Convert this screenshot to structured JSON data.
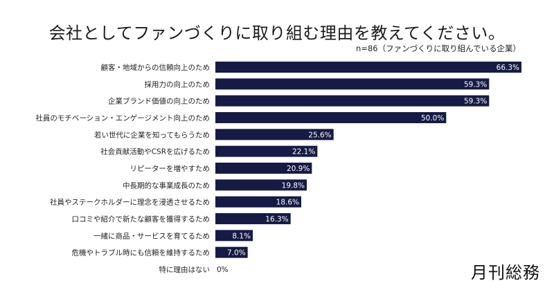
{
  "chart_data": {
    "type": "bar",
    "orientation": "horizontal",
    "title": "会社としてファンづくりに取り組む理由を教えてください。",
    "subtitle": "n=86（ファンづくりに取り組んでいる企業）",
    "categories": [
      "顧客・地域からの信頼向上のため",
      "採用力の向上のため",
      "企業ブランド価値の向上のため",
      "社員のモチベーション・エンゲージメント向上のため",
      "若い世代に企業を知ってもらうため",
      "社会貢献活動やCSRを広げるため",
      "リピーターを増やすため",
      "中長期的な事業成長のため",
      "社員やステークホルダーに理念を浸透させるため",
      "口コミや紹介で新たな顧客を獲得するため",
      "一緒に商品・サービスを育てるため",
      "危機やトラブル時にも信頼を維持するため",
      "特に理由はない"
    ],
    "values": [
      66.3,
      59.3,
      59.3,
      50.0,
      25.6,
      22.1,
      20.9,
      19.8,
      18.6,
      16.3,
      8.1,
      7.0,
      0
    ],
    "data_labels": [
      "66.3%",
      "59.3%",
      "59.3%",
      "50.0%",
      "25.6%",
      "22.1%",
      "20.9%",
      "19.8%",
      "18.6%",
      "16.3%",
      "8.1%",
      "7.0%",
      "0%"
    ],
    "unit": "%",
    "xlim": [
      0,
      66.3
    ],
    "grid": false,
    "legend": "none",
    "bar_color": "#161b45"
  },
  "logo": "月刊総務"
}
